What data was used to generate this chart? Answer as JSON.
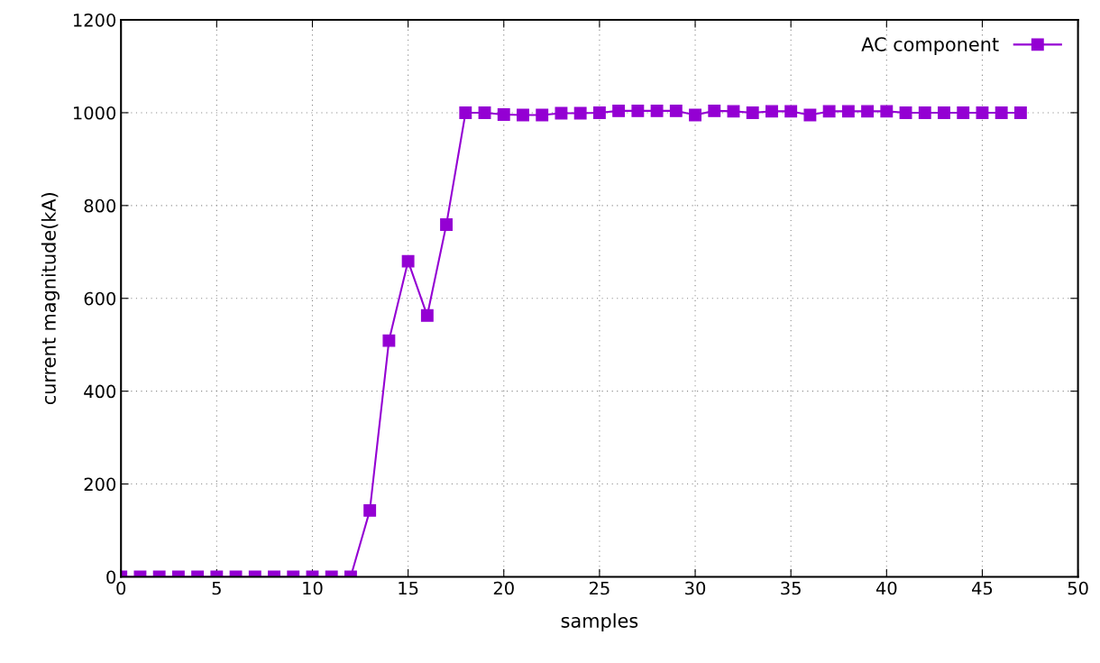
{
  "chart_data": {
    "type": "line",
    "xlabel": "samples",
    "ylabel": "current magnitude(kA)",
    "x": [
      0,
      1,
      2,
      3,
      4,
      5,
      6,
      7,
      8,
      9,
      10,
      11,
      12,
      13,
      14,
      15,
      16,
      17,
      18,
      19,
      20,
      21,
      22,
      23,
      24,
      25,
      26,
      27,
      28,
      29,
      30,
      31,
      32,
      33,
      34,
      35,
      36,
      37,
      38,
      39,
      40,
      41,
      42,
      43,
      44,
      45,
      46,
      47
    ],
    "series": [
      {
        "name": "AC component",
        "color": "#9400d3",
        "values": [
          0,
          0,
          0,
          0,
          0,
          0,
          0,
          0,
          0,
          0,
          0,
          0,
          0,
          143,
          509,
          680,
          563,
          759,
          1000,
          1000,
          996,
          995,
          995,
          999,
          999,
          1000,
          1004,
          1004,
          1004,
          1004,
          995,
          1004,
          1003,
          1000,
          1003,
          1003,
          995,
          1003,
          1003,
          1003,
          1003,
          1000,
          1000,
          1000,
          1000,
          1000,
          1000,
          1000
        ]
      }
    ],
    "xlim": [
      0,
      50
    ],
    "ylim": [
      0,
      1200
    ],
    "xticks": [
      0,
      5,
      10,
      15,
      20,
      25,
      30,
      35,
      40,
      45,
      50
    ],
    "yticks": [
      0,
      200,
      400,
      600,
      800,
      1000,
      1200
    ],
    "grid": true,
    "legend": "top right",
    "marker": "square",
    "line_style": "solid"
  }
}
